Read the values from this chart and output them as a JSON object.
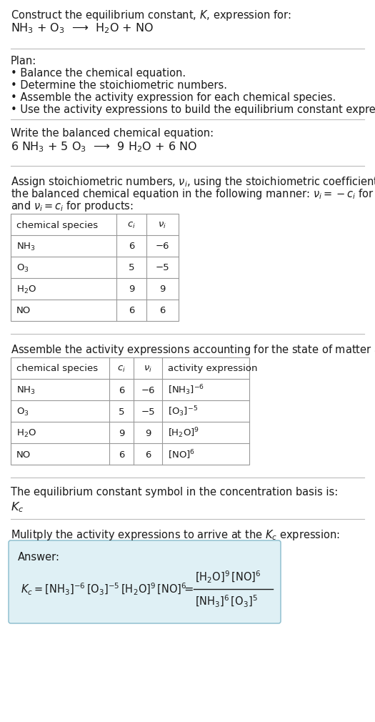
{
  "title_line1": "Construct the equilibrium constant, $K$, expression for:",
  "reaction_unbalanced": "NH$_3$ + O$_3$  ⟶  H$_2$O + NO",
  "plan_header": "Plan:",
  "plan_bullets": [
    "• Balance the chemical equation.",
    "• Determine the stoichiometric numbers.",
    "• Assemble the activity expression for each chemical species.",
    "• Use the activity expressions to build the equilibrium constant expression."
  ],
  "balanced_header": "Write the balanced chemical equation:",
  "reaction_balanced": "6 NH$_3$ + 5 O$_3$  ⟶  9 H$_2$O + 6 NO",
  "stoich_header_line1": "Assign stoichiometric numbers, $\\nu_i$, using the stoichiometric coefficients, $c_i$, from",
  "stoich_header_line2": "the balanced chemical equation in the following manner: $\\nu_i = -c_i$ for reactants",
  "stoich_header_line3": "and $\\nu_i = c_i$ for products:",
  "table1_headers": [
    "chemical species",
    "$c_i$",
    "$\\nu_i$"
  ],
  "table1_rows": [
    [
      "NH$_3$",
      "6",
      "−6"
    ],
    [
      "O$_3$",
      "5",
      "−5"
    ],
    [
      "H$_2$O",
      "9",
      "9"
    ],
    [
      "NO",
      "6",
      "6"
    ]
  ],
  "activity_header": "Assemble the activity expressions accounting for the state of matter and $\\nu_i$:",
  "table2_headers": [
    "chemical species",
    "$c_i$",
    "$\\nu_i$",
    "activity expression"
  ],
  "table2_rows": [
    [
      "NH$_3$",
      "6",
      "−6",
      "[NH$_3$]$^{-6}$"
    ],
    [
      "O$_3$",
      "5",
      "−5",
      "[O$_3$]$^{-5}$"
    ],
    [
      "H$_2$O",
      "9",
      "9",
      "[H$_2$O]$^9$"
    ],
    [
      "NO",
      "6",
      "6",
      "[NO]$^6$"
    ]
  ],
  "kc_symbol_header": "The equilibrium constant symbol in the concentration basis is:",
  "kc_symbol": "$K_c$",
  "multiply_header": "Mulitply the activity expressions to arrive at the $K_c$ expression:",
  "answer_label": "Answer:",
  "bg_color": "#ffffff",
  "table_border_color": "#999999",
  "answer_box_color": "#dff0f5",
  "answer_box_border": "#88bbcc",
  "text_color": "#1a1a1a",
  "separator_color": "#bbbbbb"
}
